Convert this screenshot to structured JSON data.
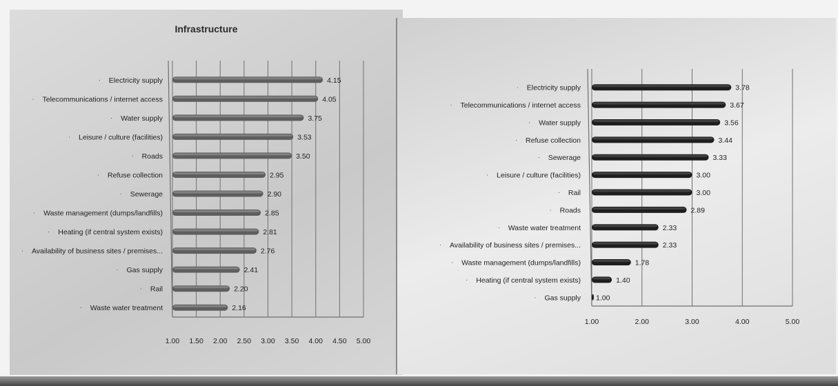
{
  "colors": {
    "left_bar": "#5e5e5e",
    "left_bar_top": "#8a8a8a",
    "right_bar": "#1e1e1e",
    "right_bar_top": "#4a4a4a",
    "axis": "#6f6f6f"
  },
  "chart_data": [
    {
      "type": "bar",
      "orientation": "horizontal",
      "title": "Infrastructure",
      "categories": [
        "Electricity supply",
        "Telecommunications / internet access",
        "Water supply",
        "Leisure / culture (facilities)",
        "Roads",
        "Refuse collection",
        "Sewerage",
        "Waste management (dumps/landfills)",
        "Heating (if central system exists)",
        "Availability of business sites / premises...",
        "Gas supply",
        "Rail",
        "Waste water treatment"
      ],
      "values": [
        4.15,
        4.05,
        3.75,
        3.53,
        3.5,
        2.95,
        2.9,
        2.85,
        2.81,
        2.76,
        2.41,
        2.2,
        2.16
      ],
      "value_labels": [
        "4.15",
        "4.05",
        "3.75",
        "3.53",
        "3.50",
        "2.95",
        "2.90",
        "2.85",
        "2.81",
        "2.76",
        "2.41",
        "2.20",
        "2.16"
      ],
      "xlim": [
        1.0,
        5.0
      ],
      "xticks": [
        "1.00",
        "1.50",
        "2.00",
        "2.50",
        "3.00",
        "3.50",
        "4.00",
        "4.50",
        "5.00"
      ],
      "grid": true
    },
    {
      "type": "bar",
      "orientation": "horizontal",
      "title": "",
      "categories": [
        "Electricity supply",
        "Telecommunications / internet access",
        "Water supply",
        "Refuse collection",
        "Sewerage",
        "Leisure / culture (facilities)",
        "Rail",
        "Roads",
        "Waste water treatment",
        "Availability of business sites / premises...",
        "Waste management (dumps/landfills)",
        "Heating (if central system exists)",
        "Gas supply"
      ],
      "values": [
        3.78,
        3.67,
        3.56,
        3.44,
        3.33,
        3.0,
        3.0,
        2.89,
        2.33,
        2.33,
        1.78,
        1.4,
        1.0
      ],
      "value_labels": [
        "3.78",
        "3.67",
        "3.56",
        "3.44",
        "3.33",
        "3.00",
        "3.00",
        "2.89",
        "2.33",
        "2.33",
        "1.78",
        "1.40",
        "1.00"
      ],
      "xlim": [
        1.0,
        5.0
      ],
      "xticks": [
        "1.00",
        "2.00",
        "3.00",
        "4.00",
        "5.00"
      ],
      "grid": true
    }
  ]
}
